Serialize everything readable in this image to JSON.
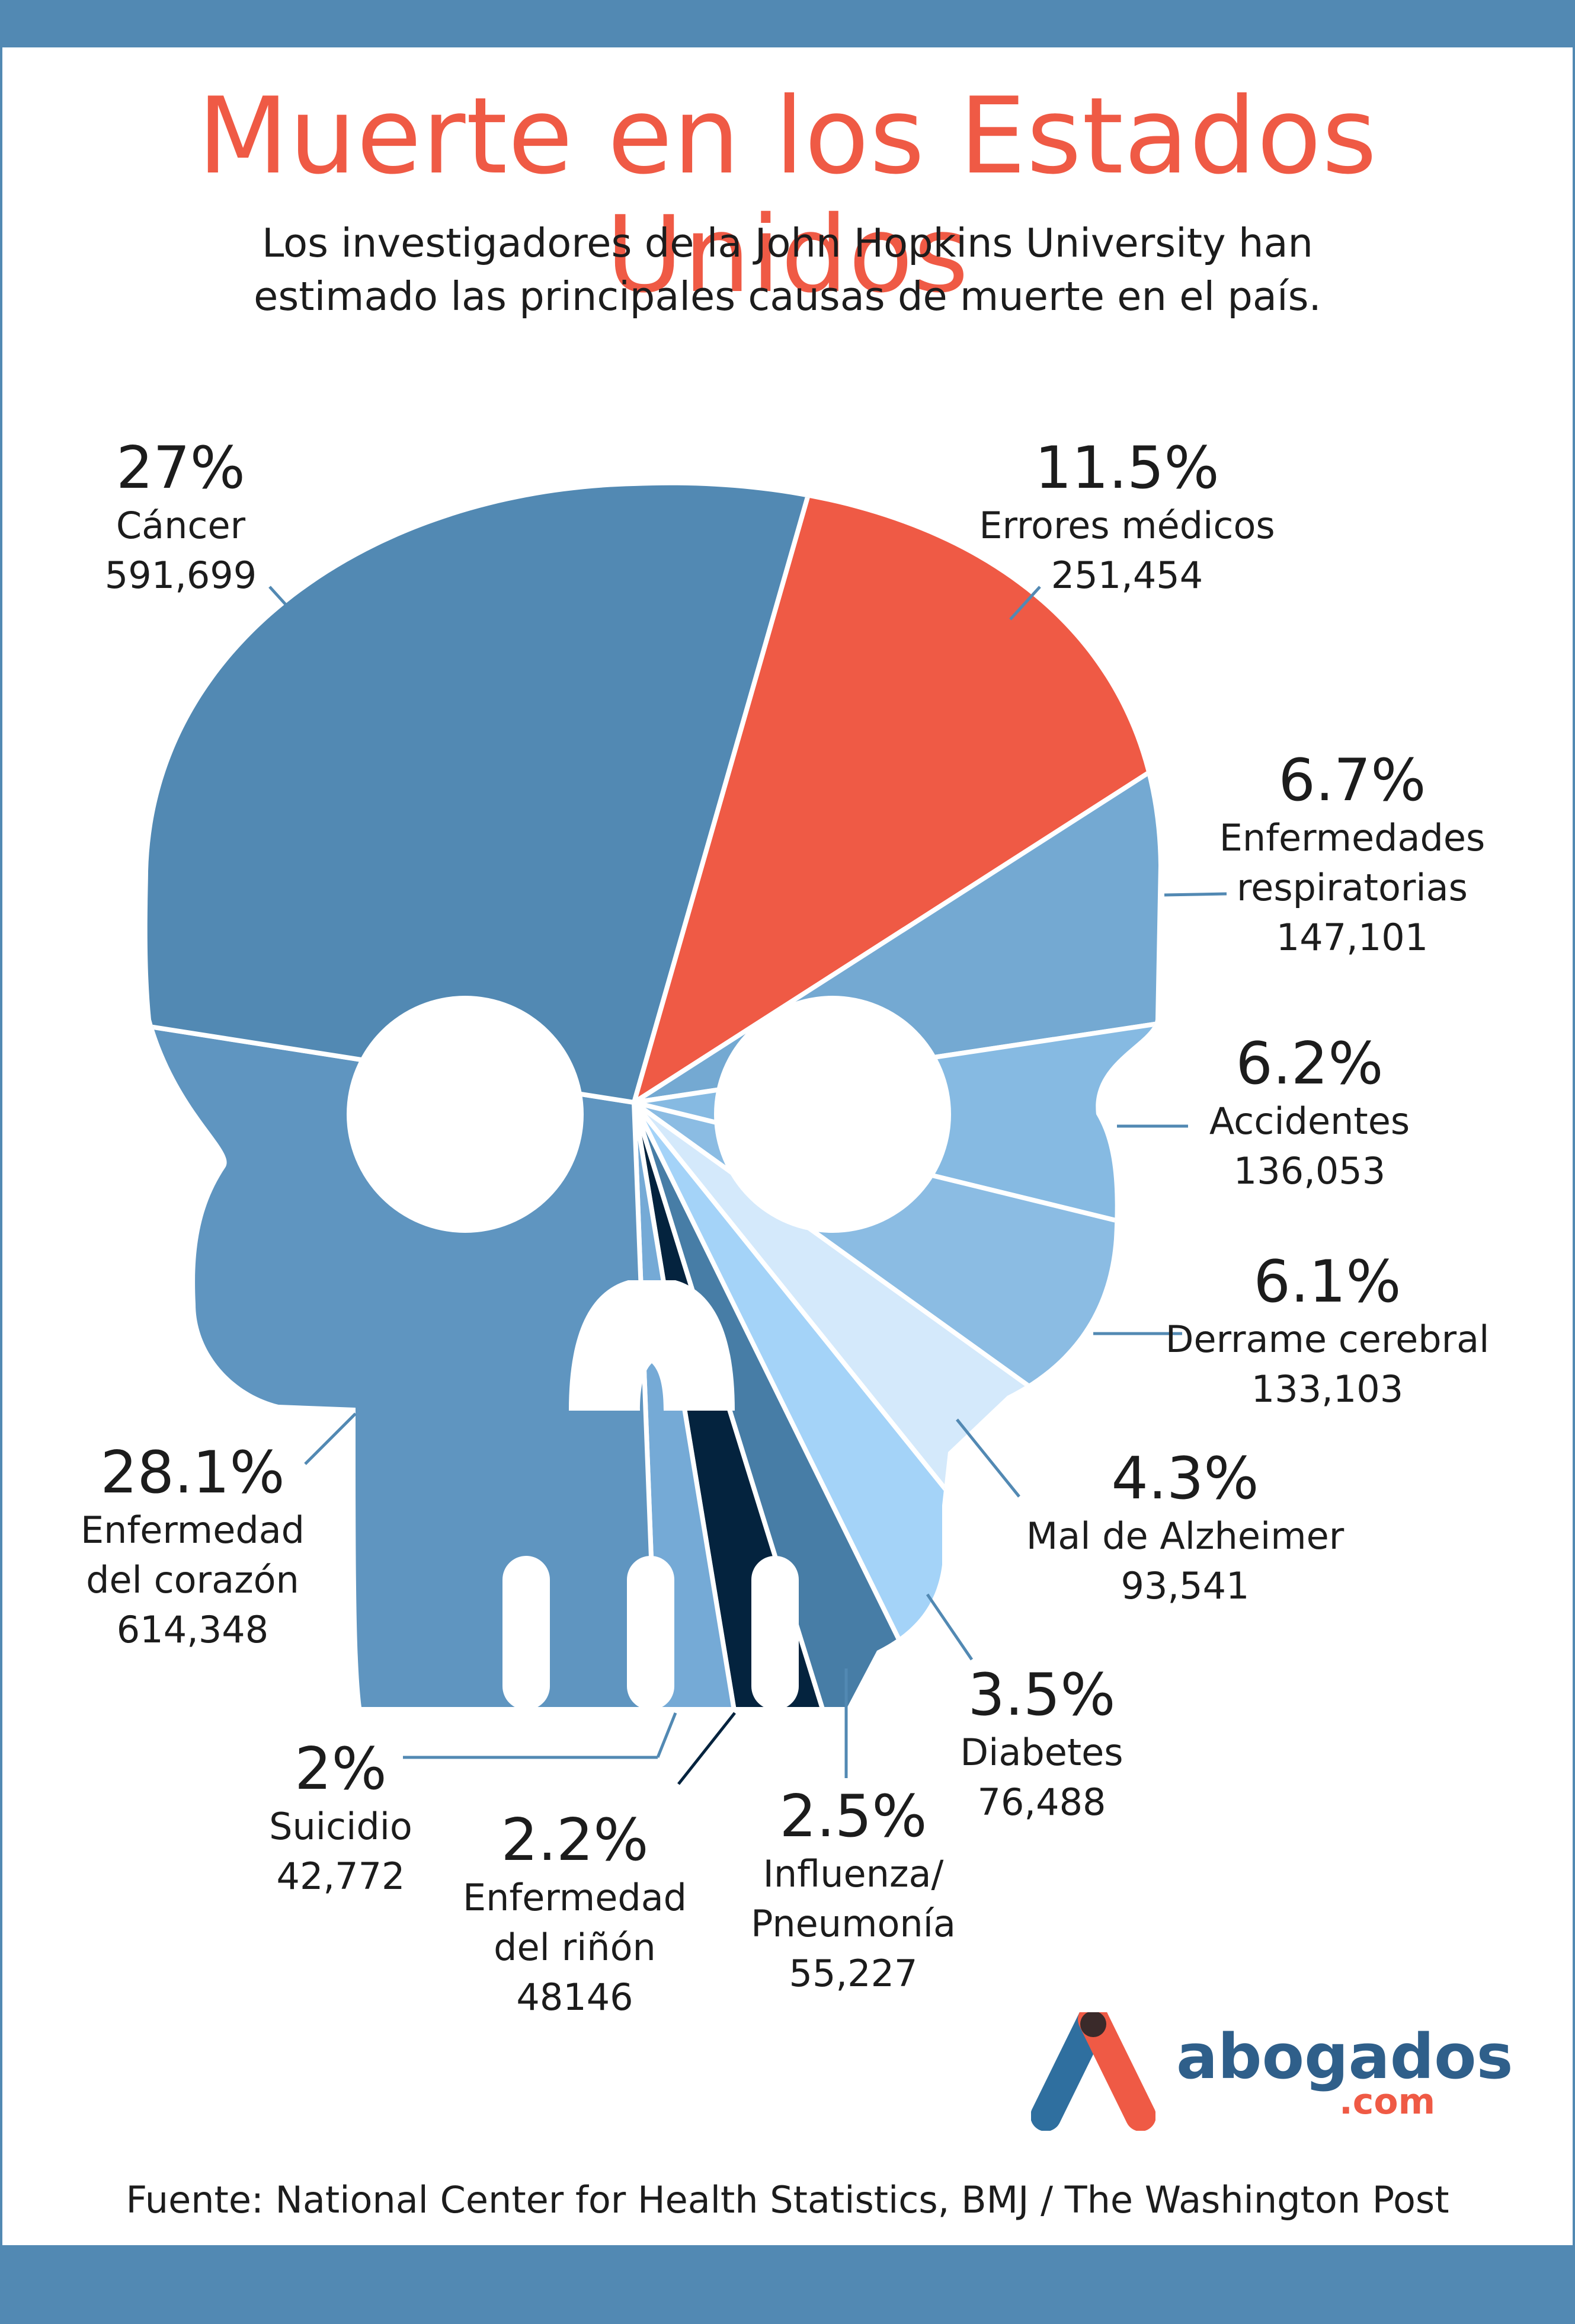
{
  "title": "Muerte en los Estados Unidos",
  "subtitle_line1": "Los investigadores de la John Hopkins University han",
  "subtitle_line2": "estimado las principales causas de muerte en el país.",
  "source": "Fuente: National Center for Health Statistics, BMJ / The Washington Post",
  "logo": {
    "text": "abogados",
    "suffix": ".com",
    "icon": "abogados-a-logo-icon"
  },
  "colors": {
    "accent": "#ef5a45",
    "band": "#5289b3"
  },
  "chart_data": {
    "type": "pie",
    "title": "Muerte en los Estados Unidos",
    "slices": [
      {
        "key": "cancer",
        "pct_label": "27%",
        "name": "Cáncer",
        "count_label": "591,699",
        "percent": 27.0,
        "deaths": 591699,
        "color": "#5289b3"
      },
      {
        "key": "errores",
        "pct_label": "11.5%",
        "name": "Errores médicos",
        "count_label": "251,454",
        "percent": 11.5,
        "deaths": 251454,
        "color": "#ef5a45"
      },
      {
        "key": "respiratorias",
        "pct_label": "6.7%",
        "name_lines": [
          "Enfermedades",
          "respiratorias"
        ],
        "count_label": "147,101",
        "percent": 6.7,
        "deaths": 147101,
        "color": "#74a9d2"
      },
      {
        "key": "accidentes",
        "pct_label": "6.2%",
        "name": "Accidentes",
        "count_label": "136,053",
        "percent": 6.2,
        "deaths": 136053,
        "color": "#86bae2"
      },
      {
        "key": "derrame",
        "pct_label": "6.1%",
        "name": "Derrame cerebral",
        "count_label": "133,103",
        "percent": 6.1,
        "deaths": 133103,
        "color": "#8bbce3"
      },
      {
        "key": "alzheimer",
        "pct_label": "4.3%",
        "name": "Mal de Alzheimer",
        "count_label": "93,541",
        "percent": 4.3,
        "deaths": 93541,
        "color": "#d4e9fb"
      },
      {
        "key": "diabetes",
        "pct_label": "3.5%",
        "name": "Diabetes",
        "count_label": "76,488",
        "percent": 3.5,
        "deaths": 76488,
        "color": "#a4d3f8"
      },
      {
        "key": "influenza",
        "pct_label": "2.5%",
        "name_lines": [
          "Influenza/",
          "Pneumonía"
        ],
        "count_label": "55,227",
        "percent": 2.5,
        "deaths": 55227,
        "color": "#477da6"
      },
      {
        "key": "rinon",
        "pct_label": "2.2%",
        "name_lines": [
          "Enfermedad",
          "del riñón"
        ],
        "count_label": "48146",
        "percent": 2.2,
        "deaths": 48146,
        "color": "#04233e"
      },
      {
        "key": "suicidio",
        "pct_label": "2%",
        "name": "Suicidio",
        "count_label": "42,772",
        "percent": 2.0,
        "deaths": 42772,
        "color": "#75aad6"
      },
      {
        "key": "corazon",
        "pct_label": "28.1%",
        "name_lines": [
          "Enfermedad",
          "del corazón"
        ],
        "count_label": "614,348",
        "percent": 28.1,
        "deaths": 614348,
        "color": "#5f95c0"
      }
    ]
  }
}
